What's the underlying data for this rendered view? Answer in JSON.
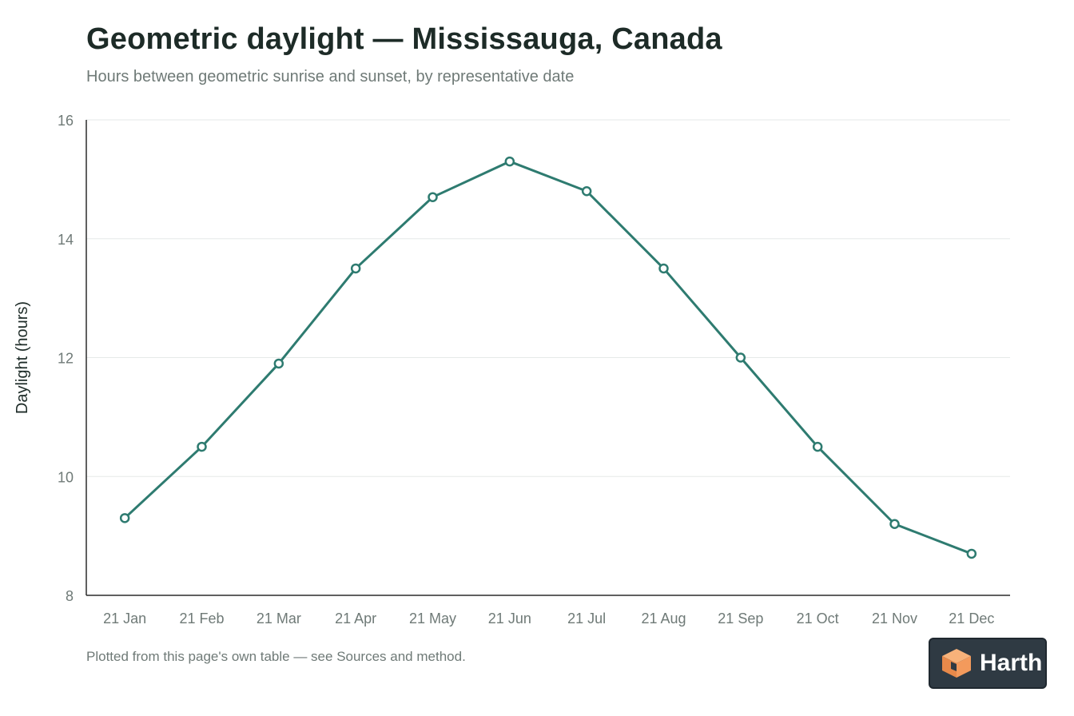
{
  "header": {
    "title": "Geometric daylight — Mississauga, Canada",
    "subtitle": "Hours between geometric sunrise and sunset, by representative date"
  },
  "footnote": "Plotted from this page's own table — see Sources and method.",
  "badge": {
    "label": "Harth",
    "icon": "harth-logo-icon"
  },
  "colors": {
    "line": "#2e7b70",
    "marker_fill": "#ffffff",
    "grid": "#e6e9e8",
    "axis": "#2b2b2b",
    "tick_text": "#6f7a77"
  },
  "chart_data": {
    "type": "line",
    "title": "Geometric daylight — Mississauga, Canada",
    "subtitle": "Hours between geometric sunrise and sunset, by representative date",
    "xlabel": "",
    "ylabel": "Daylight (hours)",
    "categories": [
      "21 Jan",
      "21 Feb",
      "21 Mar",
      "21 Apr",
      "21 May",
      "21 Jun",
      "21 Jul",
      "21 Aug",
      "21 Sep",
      "21 Oct",
      "21 Nov",
      "21 Dec"
    ],
    "series": [
      {
        "values": [
          9.3,
          10.5,
          11.9,
          13.5,
          14.7,
          15.3,
          14.8,
          13.5,
          12.0,
          10.5,
          9.2,
          8.7
        ]
      }
    ],
    "ylim": [
      8,
      16
    ],
    "yticks": [
      8,
      10,
      12,
      14,
      16
    ],
    "grid": true,
    "legend": "none"
  }
}
